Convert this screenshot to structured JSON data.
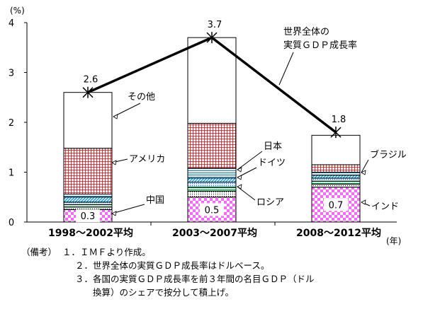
{
  "chart_data": {
    "type": "bar",
    "stacked": true,
    "y_unit": "(%)",
    "ylim": [
      0,
      4
    ],
    "yticks": [
      "0",
      "1",
      "2",
      "3",
      "4"
    ],
    "x_unit": "(年)",
    "categories": [
      "1998～2002平均",
      "2003～2007平均",
      "2008～2012平均"
    ],
    "series": [
      {
        "name": "インド",
        "values": [
          0.25,
          0.5,
          0.7
        ],
        "color": "#ff66ff",
        "pattern": "checker-pink"
      },
      {
        "name": "中国",
        "values": [
          0.05,
          0.12,
          0.06
        ],
        "color": "#000000",
        "pattern": "dots"
      },
      {
        "name": "ロシア",
        "values": [
          0.05,
          0.08,
          0.06
        ],
        "color": "#00b050",
        "pattern": "hatch-green"
      },
      {
        "name": "ブラジル",
        "values": [
          0.05,
          0.1,
          0.06
        ],
        "color": "#0070c0",
        "pattern": "dots-blue"
      },
      {
        "name": "ドイツ",
        "values": [
          0.1,
          0.08,
          0.06
        ],
        "color": "#00b0f0",
        "pattern": "diag-cyan"
      },
      {
        "name": "日本",
        "values": [
          0.06,
          0.2,
          0.06
        ],
        "color": "#0070c0",
        "pattern": "lines-blue"
      },
      {
        "name": "アメリカ",
        "values": [
          0.92,
          0.9,
          0.15
        ],
        "color": "#ff0000",
        "pattern": "grid-red"
      },
      {
        "name": "その他",
        "values": [
          1.12,
          1.72,
          0.59
        ],
        "color": "#ffffff",
        "pattern": "plain"
      }
    ],
    "bar_value_labels": [
      "0.3",
      "0.5",
      "0.7"
    ],
    "line": {
      "name_lines": [
        "世界全体の",
        "実質ＧＤＰ成長率"
      ],
      "values": [
        2.6,
        3.7,
        1.8
      ],
      "labels": [
        "2.6",
        "3.7",
        "1.8"
      ],
      "color": "#000000"
    },
    "callouts": {
      "other": "その他",
      "usa": "アメリカ",
      "china": "中国",
      "japan": "日本",
      "germany": "ドイツ",
      "russia": "ロシア",
      "brazil": "ブラジル",
      "india": "インド"
    }
  },
  "notes": {
    "prefix": "（備考）",
    "items": [
      "１．ＩＭＦより作成。",
      "２．世界全体の実質ＧＤＰ成長率はドルベース。",
      "３．各国の実質ＧＤＰ成長率を前３年間の名目ＧＤＰ（ドル",
      "　　換算）のシェアで按分して積上げ。"
    ]
  }
}
